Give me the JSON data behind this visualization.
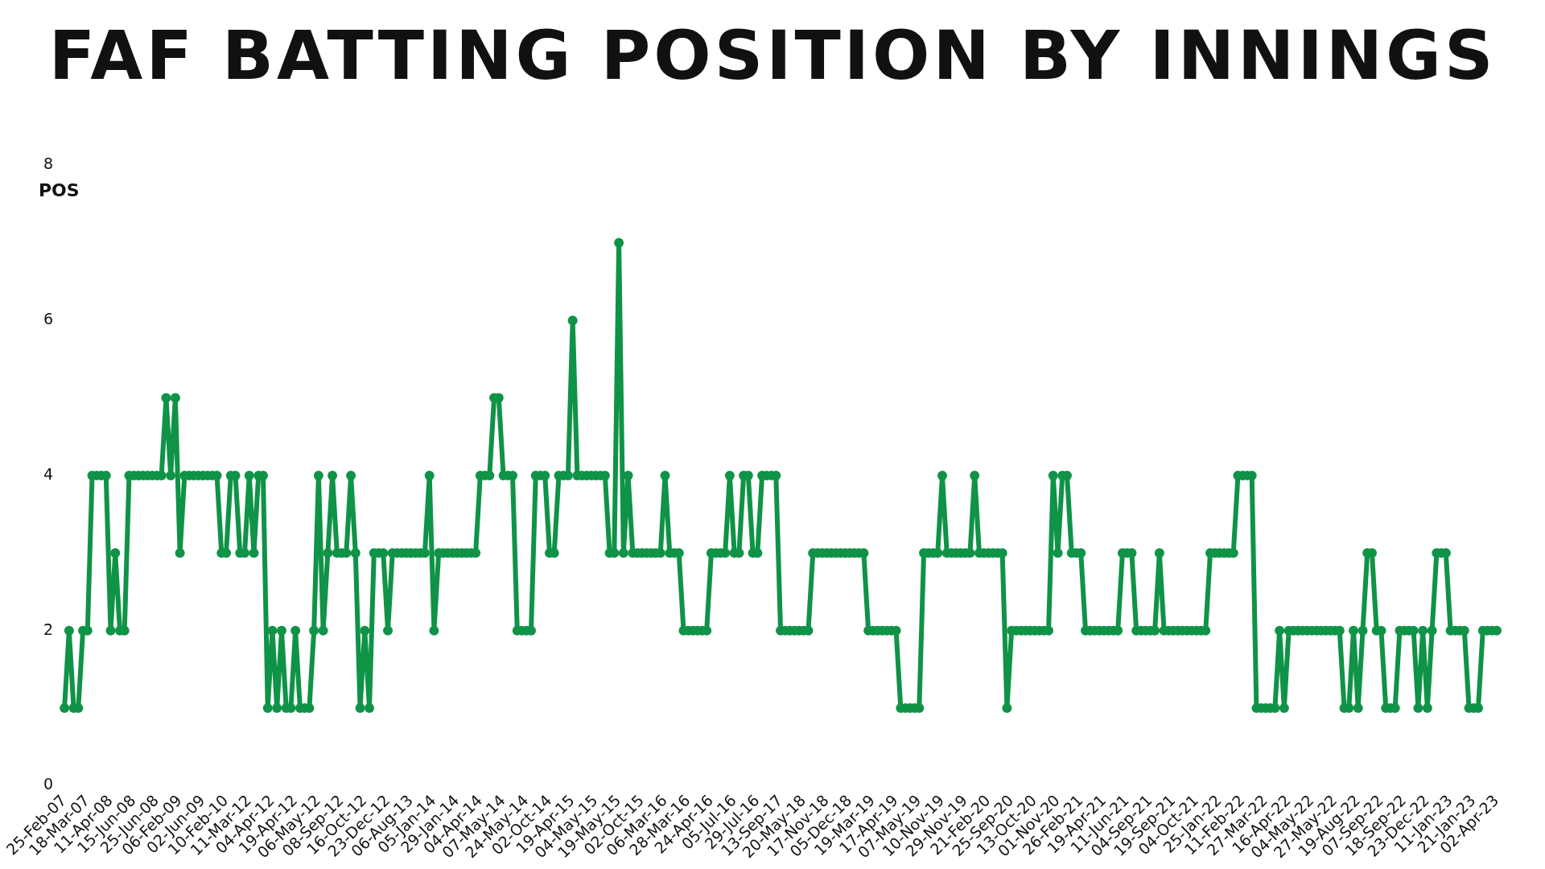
{
  "chart_data": {
    "type": "line",
    "title": "FAF BATTING POSITION BY INNINGS",
    "ylabel": "POS",
    "categories": [
      "25-Feb-07",
      null,
      null,
      null,
      null,
      "18-Mar-07",
      null,
      null,
      null,
      null,
      "11-Apr-08",
      null,
      null,
      null,
      null,
      "15-Jun-08",
      null,
      null,
      null,
      null,
      "25-Jun-08",
      null,
      null,
      null,
      null,
      "06-Feb-09",
      null,
      null,
      null,
      null,
      "02-Jun-09",
      null,
      null,
      null,
      null,
      "10-Feb-10",
      null,
      null,
      null,
      null,
      "11-Mar-12",
      null,
      null,
      null,
      null,
      "04-Apr-12",
      null,
      null,
      null,
      null,
      "19-Apr-12",
      null,
      null,
      null,
      null,
      "06-May-12",
      null,
      null,
      null,
      null,
      "08-Sep-12",
      null,
      null,
      null,
      null,
      "16-Oct-12",
      null,
      null,
      null,
      null,
      "23-Dec-12",
      null,
      null,
      null,
      null,
      "06-Aug-13",
      null,
      null,
      null,
      null,
      "05-Jan-14",
      null,
      null,
      null,
      null,
      "29-Jan-14",
      null,
      null,
      null,
      null,
      "04-Apr-14",
      null,
      null,
      null,
      null,
      "07-May-14",
      null,
      null,
      null,
      null,
      "24-May-14",
      null,
      null,
      null,
      null,
      "02-Oct-14",
      null,
      null,
      null,
      null,
      "19-Apr-15",
      null,
      null,
      null,
      null,
      "04-May-15",
      null,
      null,
      null,
      null,
      "19-May-15",
      null,
      null,
      null,
      null,
      "02-Oct-15",
      null,
      null,
      null,
      null,
      "06-Mar-16",
      null,
      null,
      null,
      null,
      "28-Mar-16",
      null,
      null,
      null,
      null,
      "24-Apr-16",
      null,
      null,
      null,
      null,
      "05-Jul-16",
      null,
      null,
      null,
      null,
      "29-Jul-16",
      null,
      null,
      null,
      null,
      "13-Sep-17",
      null,
      null,
      null,
      null,
      "20-May-18",
      null,
      null,
      null,
      null,
      "17-Nov-18",
      null,
      null,
      null,
      null,
      "05-Dec-18",
      null,
      null,
      null,
      null,
      "19-Mar-19",
      null,
      null,
      null,
      null,
      "17-Apr-19",
      null,
      null,
      null,
      null,
      "07-May-19",
      null,
      null,
      null,
      null,
      "10-Nov-19",
      null,
      null,
      null,
      null,
      "29-Nov-19",
      null,
      null,
      null,
      null,
      "21-Feb-20",
      null,
      null,
      null,
      null,
      "25-Sep-20",
      null,
      null,
      null,
      null,
      "13-Oct-20",
      null,
      null,
      null,
      null,
      "01-Nov-20",
      null,
      null,
      null,
      null,
      "26-Feb-21",
      null,
      null,
      null,
      null,
      "19-Apr-21",
      null,
      null,
      null,
      null,
      "11-Jun-21",
      null,
      null,
      null,
      null,
      "04-Sep-21",
      null,
      null,
      null,
      null,
      "19-Sep-21",
      null,
      null,
      null,
      null,
      "04-Oct-21",
      null,
      null,
      null,
      null,
      "25-Jan-22",
      null,
      null,
      null,
      null,
      "11-Feb-22",
      null,
      null,
      null,
      null,
      "27-Mar-22",
      null,
      null,
      null,
      null,
      "16-Apr-22",
      null,
      null,
      null,
      null,
      "04-May-22",
      null,
      null,
      null,
      null,
      "27-May-22",
      null,
      null,
      null,
      null,
      "19-Aug-22",
      null,
      null,
      null,
      null,
      "07-Sep-22",
      null,
      null,
      null,
      null,
      "18-Sep-22",
      null,
      null,
      null,
      null,
      "23-Dec-22",
      null,
      null,
      null,
      null,
      "11-Jan-23",
      null,
      null,
      null,
      null,
      "21-Jan-23",
      null,
      null,
      null,
      null,
      "02-Apr-23"
    ],
    "series": [
      {
        "color": "#0f9347",
        "values": [
          1,
          2,
          1,
          1,
          2,
          2,
          4,
          4,
          4,
          4,
          2,
          3,
          2,
          2,
          4,
          4,
          4,
          4,
          4,
          4,
          4,
          4,
          5,
          4,
          5,
          3,
          4,
          4,
          4,
          4,
          4,
          4,
          4,
          4,
          3,
          3,
          4,
          4,
          3,
          3,
          4,
          3,
          4,
          4,
          1,
          2,
          1,
          2,
          1,
          1,
          2,
          1,
          1,
          1,
          2,
          4,
          2,
          3,
          4,
          3,
          3,
          3,
          4,
          3,
          1,
          2,
          1,
          3,
          3,
          3,
          2,
          3,
          3,
          3,
          3,
          3,
          3,
          3,
          3,
          4,
          2,
          3,
          3,
          3,
          3,
          3,
          3,
          3,
          3,
          3,
          4,
          4,
          4,
          5,
          5,
          4,
          4,
          4,
          2,
          2,
          2,
          2,
          4,
          4,
          4,
          3,
          3,
          4,
          4,
          4,
          6,
          4,
          4,
          4,
          4,
          4,
          4,
          4,
          3,
          3,
          7,
          3,
          4,
          3,
          3,
          3,
          3,
          3,
          3,
          3,
          4,
          3,
          3,
          3,
          2,
          2,
          2,
          2,
          2,
          2,
          3,
          3,
          3,
          3,
          4,
          3,
          3,
          4,
          4,
          3,
          3,
          4,
          4,
          4,
          4,
          2,
          2,
          2,
          2,
          2,
          2,
          2,
          3,
          3,
          3,
          3,
          3,
          3,
          3,
          3,
          3,
          3,
          3,
          3,
          2,
          2,
          2,
          2,
          2,
          2,
          2,
          1,
          1,
          1,
          1,
          1,
          3,
          3,
          3,
          3,
          4,
          3,
          3,
          3,
          3,
          3,
          3,
          4,
          3,
          3,
          3,
          3,
          3,
          3,
          1,
          2,
          2,
          2,
          2,
          2,
          2,
          2,
          2,
          2,
          4,
          3,
          4,
          4,
          3,
          3,
          3,
          2,
          2,
          2,
          2,
          2,
          2,
          2,
          2,
          3,
          3,
          3,
          2,
          2,
          2,
          2,
          2,
          3,
          2,
          2,
          2,
          2,
          2,
          2,
          2,
          2,
          2,
          2,
          3,
          3,
          3,
          3,
          3,
          3,
          4,
          4,
          4,
          4,
          1,
          1,
          1,
          1,
          1,
          2,
          1,
          2,
          2,
          2,
          2,
          2,
          2,
          2,
          2,
          2,
          2,
          2,
          2,
          1,
          1,
          2,
          1,
          2,
          3,
          3,
          2,
          2,
          1,
          1,
          1,
          2,
          2,
          2,
          2,
          1,
          2,
          1,
          2,
          3,
          3,
          3,
          2,
          2,
          2,
          2,
          1,
          1,
          1,
          2,
          2,
          2,
          2
        ]
      }
    ],
    "ylim": [
      0,
      8
    ],
    "yticks": [
      0,
      2,
      4,
      6,
      8
    ],
    "marker": "circle",
    "line_style": "solid"
  }
}
